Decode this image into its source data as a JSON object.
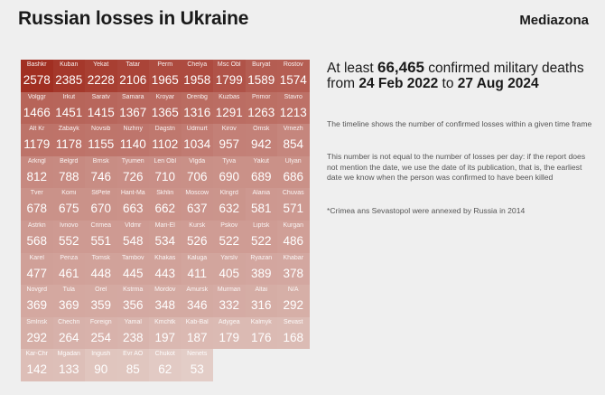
{
  "title": "Russian losses in Ukraine",
  "brand": "Mediazona",
  "headline": {
    "prefix": "At least ",
    "total": "66,465",
    "suffix": " confirmed military deaths",
    "from_label": "from ",
    "start_date": "24 Feb 2022",
    "to_label": " to ",
    "end_date": "27 Aug 2024"
  },
  "notes": [
    "The timeline shows the number of confirmed losses within a given time frame",
    "This number is not equal to the number of losses per day: if the report does not mention the date, we use the date of its publication, that is, the earliest date we know when the person was confirmed to have been killed",
    "*Crimea ans Sevastopol were annexed by Russia in 2014"
  ],
  "colors": {
    "high": "#a12f22",
    "low": "#e3cdc7",
    "text_light": "#ffffff",
    "text_dark": "#ffffff"
  },
  "chart_data": {
    "type": "heatmap",
    "columns": 9,
    "categories": [
      "Bashkr",
      "Kuban",
      "Yekat",
      "Tatar",
      "Perm",
      "Chelya",
      "Msc Obl",
      "Buryat",
      "Rostov",
      "Volggr",
      "Irkut",
      "Saratv",
      "Samara",
      "Kroyar",
      "Orenbg",
      "Kuzbas",
      "Primor",
      "Stavro",
      "Alt Kr",
      "Zabayk",
      "Novsib",
      "Nizhny",
      "Dagstn",
      "Udmurt",
      "Kirov",
      "Omsk",
      "Vrnezh",
      "Arkngl",
      "Belgrd",
      "Brnsk",
      "Tyumen",
      "Len Obl",
      "Vlgda",
      "Tyva",
      "Yakut",
      "Ulyan",
      "Tver",
      "Komi",
      "StPete",
      "Hant-Ma",
      "Skhlin",
      "Moscow",
      "Klngrd",
      "Alania",
      "Chuvas",
      "Astrkn",
      "Ivnovo",
      "Crimea",
      "Vldmr",
      "Mari-El",
      "Kursk",
      "Pskov",
      "Liptsk",
      "Kurgan",
      "Karel",
      "Penza",
      "Tomsk",
      "Tambov",
      "Khakas",
      "Kaluga",
      "Yarslv",
      "Ryazan",
      "Khabar",
      "Novgrd",
      "Tula",
      "Orel",
      "Kstrma",
      "Mordov",
      "Amursk",
      "Murman",
      "Altai",
      "N/A",
      "Smlnsk",
      "Chechn",
      "Foreign",
      "Yamal",
      "Kmchtk",
      "Kab-Bal",
      "Adygea",
      "Kalmyk",
      "Sevast",
      "Kar-Chr",
      "Mgadan",
      "Ingush",
      "Evr AO",
      "Chukot",
      "Nenets"
    ],
    "values": [
      2578,
      2385,
      2228,
      2106,
      1965,
      1958,
      1799,
      1589,
      1574,
      1466,
      1451,
      1415,
      1367,
      1365,
      1316,
      1291,
      1263,
      1213,
      1179,
      1178,
      1155,
      1140,
      1102,
      1034,
      957,
      942,
      854,
      812,
      788,
      746,
      726,
      710,
      706,
      690,
      689,
      686,
      678,
      675,
      670,
      663,
      662,
      637,
      632,
      581,
      571,
      568,
      552,
      551,
      548,
      534,
      526,
      522,
      522,
      486,
      477,
      461,
      448,
      445,
      443,
      411,
      405,
      389,
      378,
      369,
      369,
      359,
      356,
      348,
      346,
      332,
      316,
      292,
      292,
      264,
      254,
      238,
      197,
      187,
      179,
      176,
      168,
      142,
      133,
      90,
      85,
      62,
      53
    ]
  }
}
